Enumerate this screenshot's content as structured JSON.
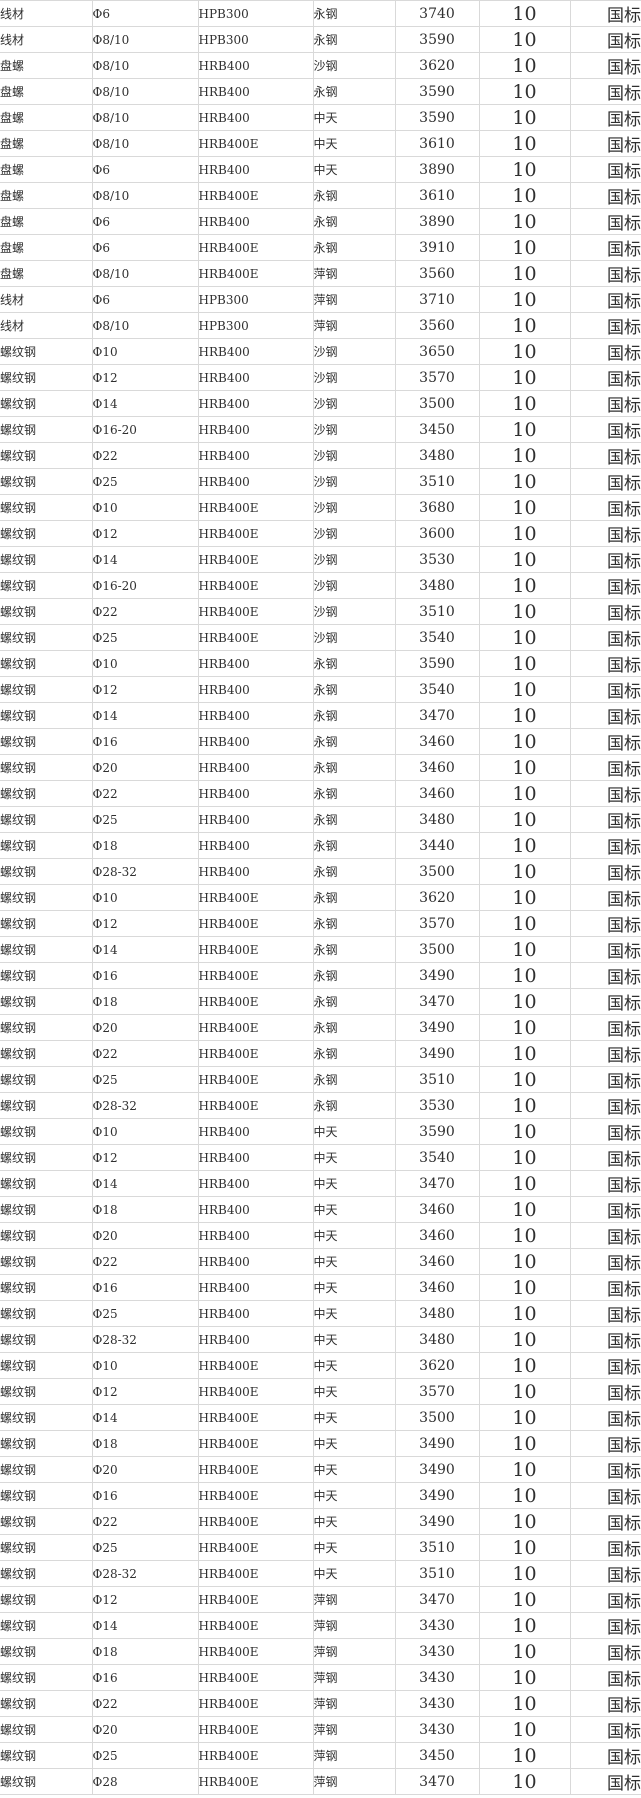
{
  "colors": {
    "background": "#ffffff",
    "gridline": "#d9d9d9",
    "text": "#2f2f2f"
  },
  "table": {
    "rows": [
      {
        "product": "线材",
        "spec": "Φ6",
        "material": "HPB300",
        "mill": "永钢",
        "price": "3740",
        "qty": "10",
        "standard": "国标"
      },
      {
        "product": "线材",
        "spec": "Φ8/10",
        "material": "HPB300",
        "mill": "永钢",
        "price": "3590",
        "qty": "10",
        "standard": "国标"
      },
      {
        "product": "盘螺",
        "spec": "Φ8/10",
        "material": "HRB400",
        "mill": "沙钢",
        "price": "3620",
        "qty": "10",
        "standard": "国标"
      },
      {
        "product": "盘螺",
        "spec": "Φ8/10",
        "material": "HRB400",
        "mill": "永钢",
        "price": "3590",
        "qty": "10",
        "standard": "国标"
      },
      {
        "product": "盘螺",
        "spec": "Φ8/10",
        "material": "HRB400",
        "mill": "中天",
        "price": "3590",
        "qty": "10",
        "standard": "国标"
      },
      {
        "product": "盘螺",
        "spec": "Φ8/10",
        "material": "HRB400E",
        "mill": "中天",
        "price": "3610",
        "qty": "10",
        "standard": "国标"
      },
      {
        "product": "盘螺",
        "spec": "Φ6",
        "material": "HRB400",
        "mill": "中天",
        "price": "3890",
        "qty": "10",
        "standard": "国标"
      },
      {
        "product": "盘螺",
        "spec": "Φ8/10",
        "material": "HRB400E",
        "mill": "永钢",
        "price": "3610",
        "qty": "10",
        "standard": "国标"
      },
      {
        "product": "盘螺",
        "spec": "Φ6",
        "material": "HRB400",
        "mill": "永钢",
        "price": "3890",
        "qty": "10",
        "standard": "国标"
      },
      {
        "product": "盘螺",
        "spec": "Φ6",
        "material": "HRB400E",
        "mill": "永钢",
        "price": "3910",
        "qty": "10",
        "standard": "国标"
      },
      {
        "product": "盘螺",
        "spec": "Φ8/10",
        "material": "HRB400E",
        "mill": "萍钢",
        "price": "3560",
        "qty": "10",
        "standard": "国标"
      },
      {
        "product": "线材",
        "spec": "Φ6",
        "material": "HPB300",
        "mill": "萍钢",
        "price": "3710",
        "qty": "10",
        "standard": "国标"
      },
      {
        "product": "线材",
        "spec": "Φ8/10",
        "material": "HPB300",
        "mill": "萍钢",
        "price": "3560",
        "qty": "10",
        "standard": "国标"
      },
      {
        "product": "螺纹钢",
        "spec": "Φ10",
        "material": "HRB400",
        "mill": "沙钢",
        "price": "3650",
        "qty": "10",
        "standard": "国标"
      },
      {
        "product": "螺纹钢",
        "spec": "Φ12",
        "material": "HRB400",
        "mill": "沙钢",
        "price": "3570",
        "qty": "10",
        "standard": "国标"
      },
      {
        "product": "螺纹钢",
        "spec": "Φ14",
        "material": "HRB400",
        "mill": "沙钢",
        "price": "3500",
        "qty": "10",
        "standard": "国标"
      },
      {
        "product": "螺纹钢",
        "spec": "Φ16-20",
        "material": "HRB400",
        "mill": "沙钢",
        "price": "3450",
        "qty": "10",
        "standard": "国标"
      },
      {
        "product": "螺纹钢",
        "spec": "Φ22",
        "material": "HRB400",
        "mill": "沙钢",
        "price": "3480",
        "qty": "10",
        "standard": "国标"
      },
      {
        "product": "螺纹钢",
        "spec": "Φ25",
        "material": "HRB400",
        "mill": "沙钢",
        "price": "3510",
        "qty": "10",
        "standard": "国标"
      },
      {
        "product": "螺纹钢",
        "spec": "Φ10",
        "material": "HRB400E",
        "mill": "沙钢",
        "price": "3680",
        "qty": "10",
        "standard": "国标"
      },
      {
        "product": "螺纹钢",
        "spec": "Φ12",
        "material": "HRB400E",
        "mill": "沙钢",
        "price": "3600",
        "qty": "10",
        "standard": "国标"
      },
      {
        "product": "螺纹钢",
        "spec": "Φ14",
        "material": "HRB400E",
        "mill": "沙钢",
        "price": "3530",
        "qty": "10",
        "standard": "国标"
      },
      {
        "product": "螺纹钢",
        "spec": "Φ16-20",
        "material": "HRB400E",
        "mill": "沙钢",
        "price": "3480",
        "qty": "10",
        "standard": "国标"
      },
      {
        "product": "螺纹钢",
        "spec": "Φ22",
        "material": "HRB400E",
        "mill": "沙钢",
        "price": "3510",
        "qty": "10",
        "standard": "国标"
      },
      {
        "product": "螺纹钢",
        "spec": "Φ25",
        "material": "HRB400E",
        "mill": "沙钢",
        "price": "3540",
        "qty": "10",
        "standard": "国标"
      },
      {
        "product": "螺纹钢",
        "spec": "Φ10",
        "material": "HRB400",
        "mill": "永钢",
        "price": "3590",
        "qty": "10",
        "standard": "国标"
      },
      {
        "product": "螺纹钢",
        "spec": "Φ12",
        "material": "HRB400",
        "mill": "永钢",
        "price": "3540",
        "qty": "10",
        "standard": "国标"
      },
      {
        "product": "螺纹钢",
        "spec": "Φ14",
        "material": "HRB400",
        "mill": "永钢",
        "price": "3470",
        "qty": "10",
        "standard": "国标"
      },
      {
        "product": "螺纹钢",
        "spec": "Φ16",
        "material": "HRB400",
        "mill": "永钢",
        "price": "3460",
        "qty": "10",
        "standard": "国标"
      },
      {
        "product": "螺纹钢",
        "spec": "Φ20",
        "material": "HRB400",
        "mill": "永钢",
        "price": "3460",
        "qty": "10",
        "standard": "国标"
      },
      {
        "product": "螺纹钢",
        "spec": "Φ22",
        "material": "HRB400",
        "mill": "永钢",
        "price": "3460",
        "qty": "10",
        "standard": "国标"
      },
      {
        "product": "螺纹钢",
        "spec": "Φ25",
        "material": "HRB400",
        "mill": "永钢",
        "price": "3480",
        "qty": "10",
        "standard": "国标"
      },
      {
        "product": "螺纹钢",
        "spec": "Φ18",
        "material": "HRB400",
        "mill": "永钢",
        "price": "3440",
        "qty": "10",
        "standard": "国标"
      },
      {
        "product": "螺纹钢",
        "spec": "Φ28-32",
        "material": "HRB400",
        "mill": "永钢",
        "price": "3500",
        "qty": "10",
        "standard": "国标"
      },
      {
        "product": "螺纹钢",
        "spec": "Φ10",
        "material": "HRB400E",
        "mill": "永钢",
        "price": "3620",
        "qty": "10",
        "standard": "国标"
      },
      {
        "product": "螺纹钢",
        "spec": "Φ12",
        "material": "HRB400E",
        "mill": "永钢",
        "price": "3570",
        "qty": "10",
        "standard": "国标"
      },
      {
        "product": "螺纹钢",
        "spec": "Φ14",
        "material": "HRB400E",
        "mill": "永钢",
        "price": "3500",
        "qty": "10",
        "standard": "国标"
      },
      {
        "product": "螺纹钢",
        "spec": "Φ16",
        "material": "HRB400E",
        "mill": "永钢",
        "price": "3490",
        "qty": "10",
        "standard": "国标"
      },
      {
        "product": "螺纹钢",
        "spec": "Φ18",
        "material": "HRB400E",
        "mill": "永钢",
        "price": "3470",
        "qty": "10",
        "standard": "国标"
      },
      {
        "product": "螺纹钢",
        "spec": "Φ20",
        "material": "HRB400E",
        "mill": "永钢",
        "price": "3490",
        "qty": "10",
        "standard": "国标"
      },
      {
        "product": "螺纹钢",
        "spec": "Φ22",
        "material": "HRB400E",
        "mill": "永钢",
        "price": "3490",
        "qty": "10",
        "standard": "国标"
      },
      {
        "product": "螺纹钢",
        "spec": "Φ25",
        "material": "HRB400E",
        "mill": "永钢",
        "price": "3510",
        "qty": "10",
        "standard": "国标"
      },
      {
        "product": "螺纹钢",
        "spec": "Φ28-32",
        "material": "HRB400E",
        "mill": "永钢",
        "price": "3530",
        "qty": "10",
        "standard": "国标"
      },
      {
        "product": "螺纹钢",
        "spec": "Φ10",
        "material": "HRB400",
        "mill": "中天",
        "price": "3590",
        "qty": "10",
        "standard": "国标"
      },
      {
        "product": "螺纹钢",
        "spec": "Φ12",
        "material": "HRB400",
        "mill": "中天",
        "price": "3540",
        "qty": "10",
        "standard": "国标"
      },
      {
        "product": "螺纹钢",
        "spec": "Φ14",
        "material": "HRB400",
        "mill": "中天",
        "price": "3470",
        "qty": "10",
        "standard": "国标"
      },
      {
        "product": "螺纹钢",
        "spec": "Φ18",
        "material": "HRB400",
        "mill": "中天",
        "price": "3460",
        "qty": "10",
        "standard": "国标"
      },
      {
        "product": "螺纹钢",
        "spec": "Φ20",
        "material": "HRB400",
        "mill": "中天",
        "price": "3460",
        "qty": "10",
        "standard": "国标"
      },
      {
        "product": "螺纹钢",
        "spec": "Φ22",
        "material": "HRB400",
        "mill": "中天",
        "price": "3460",
        "qty": "10",
        "standard": "国标"
      },
      {
        "product": "螺纹钢",
        "spec": "Φ16",
        "material": "HRB400",
        "mill": "中天",
        "price": "3460",
        "qty": "10",
        "standard": "国标"
      },
      {
        "product": "螺纹钢",
        "spec": "Φ25",
        "material": "HRB400",
        "mill": "中天",
        "price": "3480",
        "qty": "10",
        "standard": "国标"
      },
      {
        "product": "螺纹钢",
        "spec": "Φ28-32",
        "material": "HRB400",
        "mill": "中天",
        "price": "3480",
        "qty": "10",
        "standard": "国标"
      },
      {
        "product": "螺纹钢",
        "spec": "Φ10",
        "material": "HRB400E",
        "mill": "中天",
        "price": "3620",
        "qty": "10",
        "standard": "国标"
      },
      {
        "product": "螺纹钢",
        "spec": "Φ12",
        "material": "HRB400E",
        "mill": "中天",
        "price": "3570",
        "qty": "10",
        "standard": "国标"
      },
      {
        "product": "螺纹钢",
        "spec": "Φ14",
        "material": "HRB400E",
        "mill": "中天",
        "price": "3500",
        "qty": "10",
        "standard": "国标"
      },
      {
        "product": "螺纹钢",
        "spec": "Φ18",
        "material": "HRB400E",
        "mill": "中天",
        "price": "3490",
        "qty": "10",
        "standard": "国标"
      },
      {
        "product": "螺纹钢",
        "spec": "Φ20",
        "material": "HRB400E",
        "mill": "中天",
        "price": "3490",
        "qty": "10",
        "standard": "国标"
      },
      {
        "product": "螺纹钢",
        "spec": "Φ16",
        "material": "HRB400E",
        "mill": "中天",
        "price": "3490",
        "qty": "10",
        "standard": "国标"
      },
      {
        "product": "螺纹钢",
        "spec": "Φ22",
        "material": "HRB400E",
        "mill": "中天",
        "price": "3490",
        "qty": "10",
        "standard": "国标"
      },
      {
        "product": "螺纹钢",
        "spec": "Φ25",
        "material": "HRB400E",
        "mill": "中天",
        "price": "3510",
        "qty": "10",
        "standard": "国标"
      },
      {
        "product": "螺纹钢",
        "spec": "Φ28-32",
        "material": "HRB400E",
        "mill": "中天",
        "price": "3510",
        "qty": "10",
        "standard": "国标"
      },
      {
        "product": "螺纹钢",
        "spec": "Φ12",
        "material": "HRB400E",
        "mill": "萍钢",
        "price": "3470",
        "qty": "10",
        "standard": "国标"
      },
      {
        "product": "螺纹钢",
        "spec": "Φ14",
        "material": "HRB400E",
        "mill": "萍钢",
        "price": "3430",
        "qty": "10",
        "standard": "国标"
      },
      {
        "product": "螺纹钢",
        "spec": "Φ18",
        "material": "HRB400E",
        "mill": "萍钢",
        "price": "3430",
        "qty": "10",
        "standard": "国标"
      },
      {
        "product": "螺纹钢",
        "spec": "Φ16",
        "material": "HRB400E",
        "mill": "萍钢",
        "price": "3430",
        "qty": "10",
        "standard": "国标"
      },
      {
        "product": "螺纹钢",
        "spec": "Φ22",
        "material": "HRB400E",
        "mill": "萍钢",
        "price": "3430",
        "qty": "10",
        "standard": "国标"
      },
      {
        "product": "螺纹钢",
        "spec": "Φ20",
        "material": "HRB400E",
        "mill": "萍钢",
        "price": "3430",
        "qty": "10",
        "standard": "国标"
      },
      {
        "product": "螺纹钢",
        "spec": "Φ25",
        "material": "HRB400E",
        "mill": "萍钢",
        "price": "3450",
        "qty": "10",
        "standard": "国标"
      },
      {
        "product": "螺纹钢",
        "spec": "Φ28",
        "material": "HRB400E",
        "mill": "萍钢",
        "price": "3470",
        "qty": "10",
        "standard": "国标"
      }
    ]
  }
}
